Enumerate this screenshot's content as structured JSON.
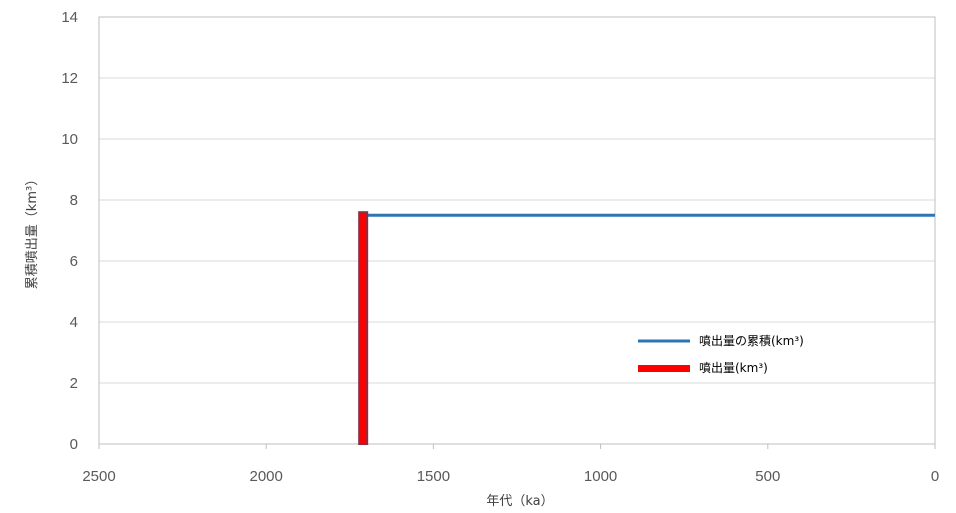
{
  "chart_data": {
    "type": "line",
    "title": "",
    "xlabel": "年代（ka）",
    "ylabel": "累積噴出量（km³）",
    "xlim": [
      2500,
      0
    ],
    "x_reversed": true,
    "ylim": [
      0,
      14
    ],
    "x_ticks": [
      "2500",
      "2000",
      "1500",
      "1000",
      "500",
      "0"
    ],
    "y_ticks": [
      "0",
      "2",
      "4",
      "6",
      "8",
      "10",
      "12",
      "14"
    ],
    "grid": true,
    "legend_position": "lower-right",
    "series": [
      {
        "name": "噴出量の累積(km³)",
        "kind": "line",
        "color": "#2E75B6",
        "points": [
          [
            1700,
            7.5
          ],
          [
            0,
            7.5
          ]
        ]
      },
      {
        "name": "噴出量(km³)",
        "kind": "bar",
        "color": "#FF0000",
        "edge_color": "#8B2E45",
        "points": [
          [
            1710,
            7.6
          ]
        ]
      }
    ]
  }
}
